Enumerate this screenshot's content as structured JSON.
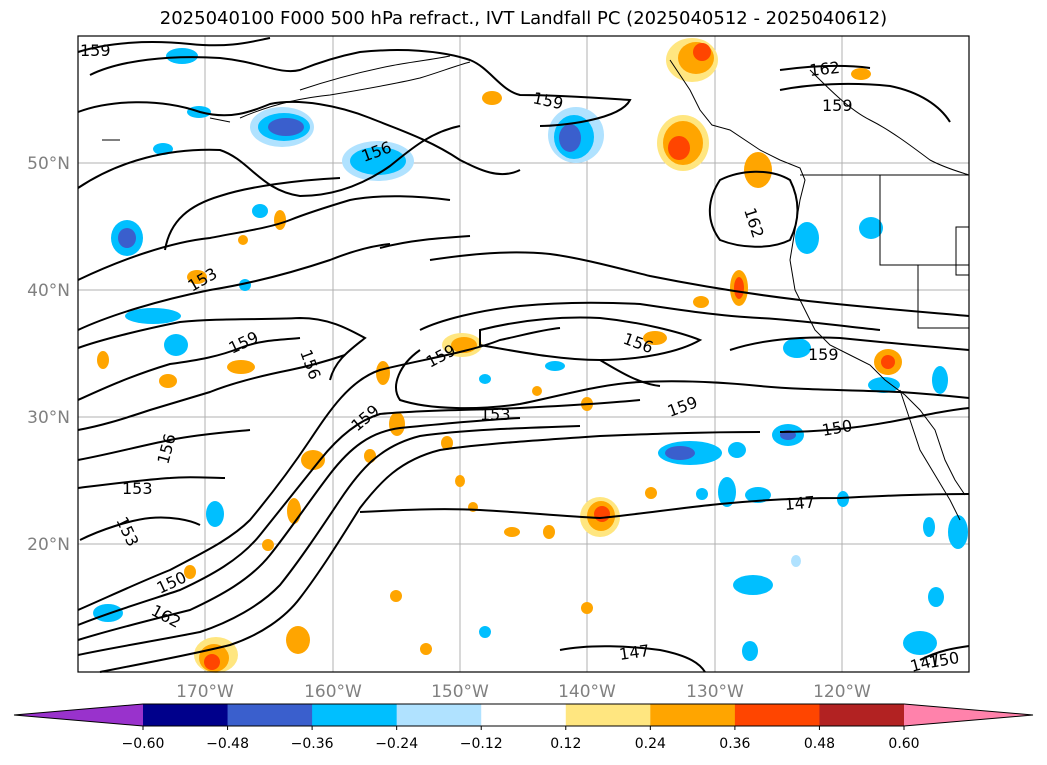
{
  "title": "2025040100 F000 500 hPa refract., IVT Landfall PC (2025040512 - 2025040612)",
  "map": {
    "lat_labels": [
      "50°N",
      "40°N",
      "30°N",
      "20°N"
    ],
    "lon_labels": [
      "170°W",
      "160°W",
      "150°W",
      "140°W",
      "130°W",
      "120°W"
    ],
    "contour_labels": [
      "159",
      "159",
      "162",
      "159",
      "156",
      "153",
      "159",
      "156",
      "162",
      "159",
      "156",
      "159",
      "159",
      "156",
      "153",
      "159",
      "150",
      "153",
      "153",
      "147",
      "150",
      "162",
      "147",
      "150",
      "147"
    ]
  },
  "colorbar": {
    "ticks": [
      "−0.60",
      "−0.48",
      "−0.36",
      "−0.24",
      "−0.12",
      "0.12",
      "0.24",
      "0.36",
      "0.48",
      "0.60"
    ],
    "colors": [
      "#9932CC",
      "#00008B",
      "#3A5FCD",
      "#00BFFF",
      "#B0E2FF",
      "#FFFFFF",
      "#FFE680",
      "#FFA500",
      "#FF4500",
      "#B22222",
      "#FF82AB",
      "#FF82AB"
    ]
  }
}
